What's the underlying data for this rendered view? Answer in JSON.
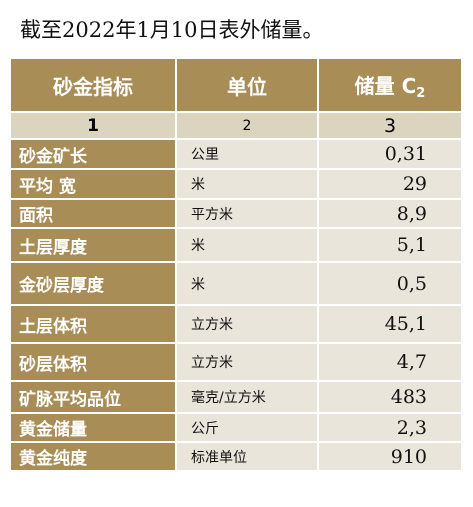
{
  "caption": "截至2022年1月10日表外储量。",
  "table": {
    "headers": {
      "col1": "砂金指标",
      "col2": "单位",
      "col3_main": "储量 C",
      "col3_sub": "2"
    },
    "column_numbers": [
      "1",
      "2",
      "3"
    ],
    "rows": [
      {
        "name": "砂金矿长",
        "unit": "公里",
        "value": "0,31"
      },
      {
        "name": "平均 宽",
        "unit": "米",
        "value": "29"
      },
      {
        "name": "面积",
        "unit": "平方米",
        "value": "8,9"
      },
      {
        "name": "土层厚度",
        "unit": "米",
        "value": "5,1"
      },
      {
        "name": "金砂层厚度",
        "unit": "米",
        "value": "0,5"
      },
      {
        "name": "土层体积",
        "unit": "立方米",
        "value": "45,1"
      },
      {
        "name": "砂层体积",
        "unit": "立方米",
        "value": "4,7"
      },
      {
        "name": "矿脉平均品位",
        "unit": "毫克/立方米",
        "value": "483"
      },
      {
        "name": "黄金储量",
        "unit": "公斤",
        "value": "2,3"
      },
      {
        "name": "黄金纯度",
        "unit": "标准单位",
        "value": "910"
      }
    ]
  },
  "colors": {
    "header_bg": "#a88d57",
    "number_row_bg": "#dbd4bf",
    "data_bg": "#e9e5da",
    "header_text": "#ffffff"
  }
}
